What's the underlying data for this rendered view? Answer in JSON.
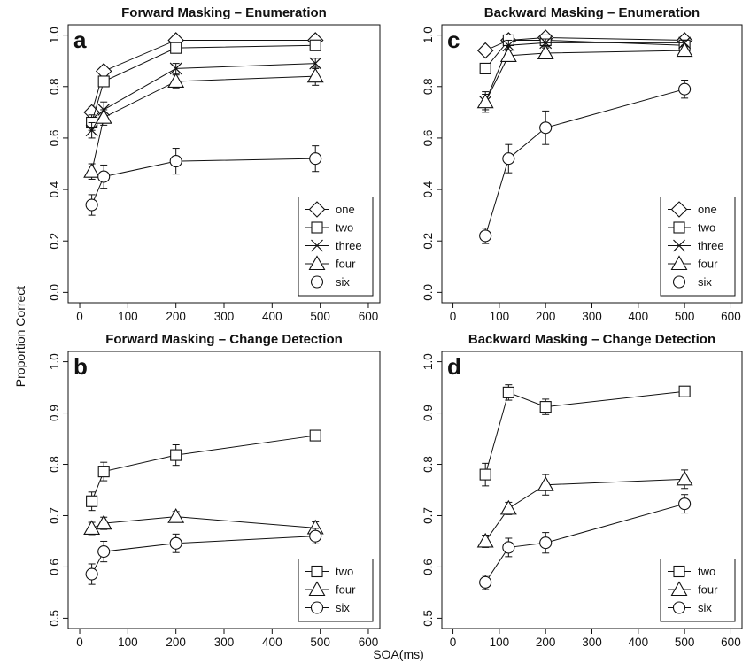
{
  "figure": {
    "ylabel": "Proportion Correct",
    "xlabel": "SOA(ms)"
  },
  "chart_data": [
    {
      "type": "line",
      "panel": "a",
      "title": "Forward Masking – Enumeration",
      "xlim": [
        0,
        600
      ],
      "ylim": [
        0.0,
        1.0
      ],
      "xticks": [
        0,
        100,
        200,
        300,
        400,
        500,
        600
      ],
      "yticks": [
        0.0,
        0.2,
        0.4,
        0.6,
        0.8,
        1.0
      ],
      "ytick_labels": [
        "0.0",
        "0.2",
        "0.4",
        "0.6",
        "0.8",
        "1.0"
      ],
      "legend_position": "bottom-right",
      "series": [
        {
          "name": "one",
          "marker": "diamond",
          "x": [
            25,
            50,
            200,
            490
          ],
          "y": [
            0.7,
            0.86,
            0.98,
            0.98
          ],
          "err": [
            0.02,
            0.015,
            0.015,
            0.01
          ]
        },
        {
          "name": "two",
          "marker": "square",
          "x": [
            25,
            50,
            200,
            490
          ],
          "y": [
            0.66,
            0.82,
            0.95,
            0.96
          ],
          "err": [
            0.03,
            0.02,
            0.02,
            0.015
          ]
        },
        {
          "name": "three",
          "marker": "x",
          "x": [
            25,
            50,
            200,
            490
          ],
          "y": [
            0.63,
            0.71,
            0.87,
            0.89
          ],
          "err": [
            0.03,
            0.03,
            0.02,
            0.02
          ]
        },
        {
          "name": "four",
          "marker": "triangle",
          "x": [
            25,
            50,
            200,
            490
          ],
          "y": [
            0.47,
            0.68,
            0.82,
            0.84
          ],
          "err": [
            0.03,
            0.03,
            0.025,
            0.035
          ]
        },
        {
          "name": "six",
          "marker": "circle",
          "x": [
            25,
            50,
            200,
            490
          ],
          "y": [
            0.34,
            0.45,
            0.51,
            0.52
          ],
          "err": [
            0.04,
            0.045,
            0.05,
            0.05
          ]
        }
      ]
    },
    {
      "type": "line",
      "panel": "b",
      "title": "Forward Masking – Change Detection",
      "xlim": [
        0,
        600
      ],
      "ylim": [
        0.5,
        1.0
      ],
      "xticks": [
        0,
        100,
        200,
        300,
        400,
        500,
        600
      ],
      "yticks": [
        0.5,
        0.6,
        0.7,
        0.8,
        0.9,
        1.0
      ],
      "ytick_labels": [
        "0.5",
        "0.6",
        "0.7",
        "0.8",
        "0.9",
        "1.0"
      ],
      "legend_position": "bottom-right",
      "series": [
        {
          "name": "two",
          "marker": "square",
          "x": [
            25,
            50,
            200,
            490
          ],
          "y": [
            0.728,
            0.786,
            0.818,
            0.856
          ],
          "err": [
            0.018,
            0.018,
            0.02,
            0.01
          ]
        },
        {
          "name": "four",
          "marker": "triangle",
          "x": [
            25,
            50,
            200,
            490
          ],
          "y": [
            0.675,
            0.685,
            0.698,
            0.676
          ],
          "err": [
            0.012,
            0.012,
            0.01,
            0.012
          ]
        },
        {
          "name": "six",
          "marker": "circle",
          "x": [
            25,
            50,
            200,
            490
          ],
          "y": [
            0.586,
            0.63,
            0.646,
            0.66
          ],
          "err": [
            0.02,
            0.02,
            0.018,
            0.015
          ]
        }
      ]
    },
    {
      "type": "line",
      "panel": "c",
      "title": "Backward Masking – Enumeration",
      "xlim": [
        0,
        600
      ],
      "ylim": [
        0.0,
        1.0
      ],
      "xticks": [
        0,
        100,
        200,
        300,
        400,
        500,
        600
      ],
      "yticks": [
        0.0,
        0.2,
        0.4,
        0.6,
        0.8,
        1.0
      ],
      "ytick_labels": [
        "0.0",
        "0.2",
        "0.4",
        "0.6",
        "0.8",
        "1.0"
      ],
      "legend_position": "bottom-right",
      "series": [
        {
          "name": "one",
          "marker": "diamond",
          "x": [
            70,
            120,
            200,
            500
          ],
          "y": [
            0.94,
            0.98,
            0.99,
            0.98
          ],
          "err": [
            0.01,
            0.01,
            0.008,
            0.01
          ]
        },
        {
          "name": "two",
          "marker": "square",
          "x": [
            70,
            120,
            200,
            500
          ],
          "y": [
            0.87,
            0.98,
            0.98,
            0.96
          ],
          "err": [
            0.02,
            0.01,
            0.01,
            0.01
          ]
        },
        {
          "name": "three",
          "marker": "x",
          "x": [
            70,
            120,
            200,
            500
          ],
          "y": [
            0.74,
            0.96,
            0.97,
            0.97
          ],
          "err": [
            0.04,
            0.02,
            0.015,
            0.01
          ]
        },
        {
          "name": "four",
          "marker": "triangle",
          "x": [
            70,
            120,
            200,
            500
          ],
          "y": [
            0.74,
            0.92,
            0.93,
            0.94
          ],
          "err": [
            0.03,
            0.02,
            0.02,
            0.015
          ]
        },
        {
          "name": "six",
          "marker": "circle",
          "x": [
            70,
            120,
            200,
            500
          ],
          "y": [
            0.22,
            0.52,
            0.64,
            0.79
          ],
          "err": [
            0.03,
            0.055,
            0.065,
            0.035
          ]
        }
      ]
    },
    {
      "type": "line",
      "panel": "d",
      "title": "Backward Masking – Change Detection",
      "xlim": [
        0,
        600
      ],
      "ylim": [
        0.5,
        1.0
      ],
      "xticks": [
        0,
        100,
        200,
        300,
        400,
        500,
        600
      ],
      "yticks": [
        0.5,
        0.6,
        0.7,
        0.8,
        0.9,
        1.0
      ],
      "ytick_labels": [
        "0.5",
        "0.6",
        "0.7",
        "0.8",
        "0.9",
        "1.0"
      ],
      "legend_position": "bottom-right",
      "series": [
        {
          "name": "two",
          "marker": "square",
          "x": [
            70,
            120,
            200,
            500
          ],
          "y": [
            0.78,
            0.94,
            0.912,
            0.942
          ],
          "err": [
            0.022,
            0.015,
            0.015,
            0.006
          ]
        },
        {
          "name": "four",
          "marker": "triangle",
          "x": [
            70,
            120,
            200,
            500
          ],
          "y": [
            0.65,
            0.714,
            0.76,
            0.771
          ],
          "err": [
            0.012,
            0.012,
            0.02,
            0.018
          ]
        },
        {
          "name": "six",
          "marker": "circle",
          "x": [
            70,
            120,
            200,
            500
          ],
          "y": [
            0.57,
            0.638,
            0.647,
            0.723
          ],
          "err": [
            0.014,
            0.018,
            0.02,
            0.018
          ]
        }
      ]
    }
  ]
}
